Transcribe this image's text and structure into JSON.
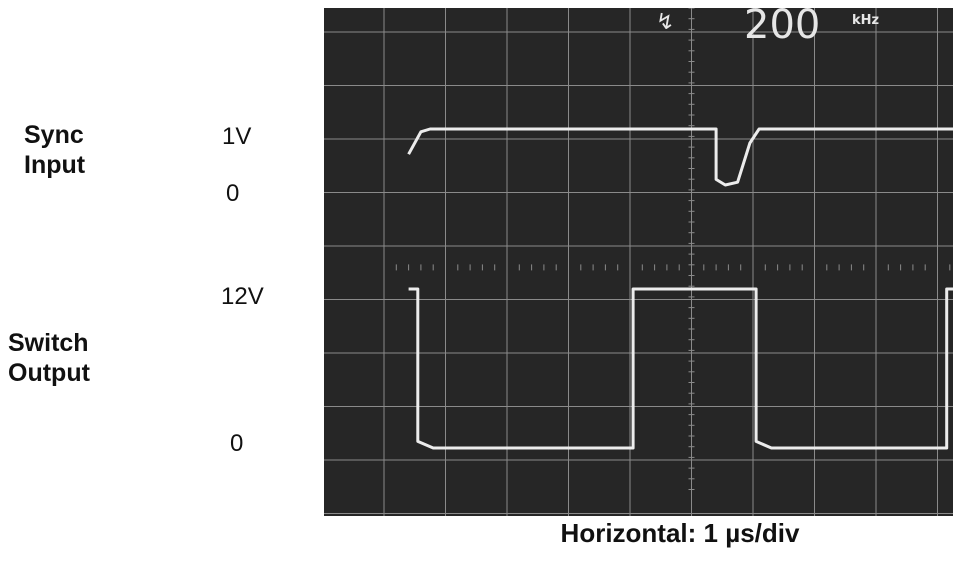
{
  "labels": {
    "sync_input": [
      "Sync",
      "Input"
    ],
    "switch_output": [
      "Switch",
      "Output"
    ],
    "sync_high": "1V",
    "sync_zero": "0",
    "switch_high": "12V",
    "switch_zero": "0"
  },
  "scope": {
    "readout_icon": "trigger-slope-icon",
    "readout_value": "200",
    "readout_unit": "kHz"
  },
  "footer": "Horizontal: 1 µs/div",
  "colors": {
    "screen": "#262626",
    "trace": "#ececec",
    "grid": "#8a8a8a"
  },
  "chart_data": {
    "type": "line",
    "xlabel": "Horizontal: 1 µs/div",
    "x_unit": "µs",
    "x_div": 1,
    "xlim": [
      0,
      10
    ],
    "grid": true,
    "series": [
      {
        "name": "Sync Input",
        "y_unit": "V",
        "y_labels": [
          "1V",
          "0"
        ],
        "points": [
          [
            0.4,
            0.55
          ],
          [
            0.6,
            0.95
          ],
          [
            0.75,
            1.0
          ],
          [
            5.4,
            1.0
          ],
          [
            5.4,
            0.1
          ],
          [
            5.55,
            0.0
          ],
          [
            5.75,
            0.05
          ],
          [
            5.95,
            0.75
          ],
          [
            6.1,
            1.0
          ],
          [
            10,
            1.0
          ]
        ]
      },
      {
        "name": "Switch Output",
        "y_unit": "V",
        "y_labels": [
          "12V",
          "0"
        ],
        "points": [
          [
            0.4,
            12
          ],
          [
            0.55,
            12
          ],
          [
            0.55,
            0.5
          ],
          [
            0.8,
            0
          ],
          [
            4.05,
            0
          ],
          [
            4.05,
            12
          ],
          [
            6.05,
            12
          ],
          [
            6.05,
            0.5
          ],
          [
            6.3,
            0
          ],
          [
            9.15,
            0
          ],
          [
            9.15,
            12
          ],
          [
            10,
            12
          ]
        ]
      }
    ]
  }
}
